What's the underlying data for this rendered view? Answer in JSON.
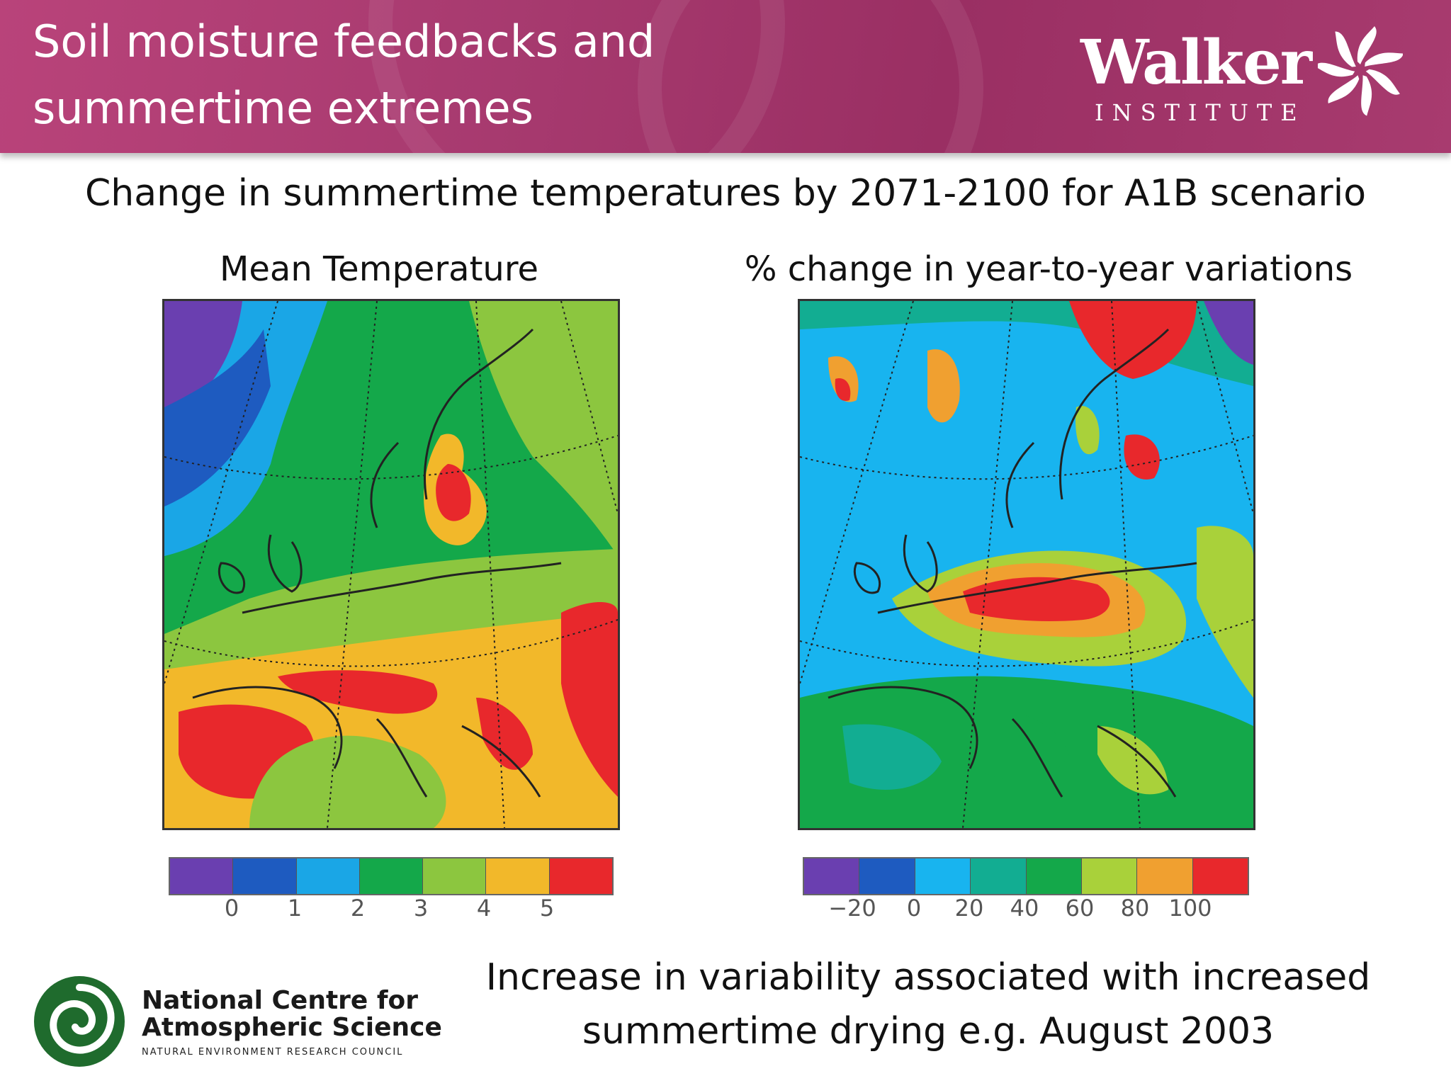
{
  "header": {
    "title_line1": "Soil moisture feedbacks and",
    "title_line2": "summertime extremes",
    "logo_name": "Walker",
    "logo_sub": "INSTITUTE",
    "colors": {
      "banner": "#a63a6e",
      "text": "#ffffff"
    }
  },
  "subtitle": "Change in summertime temperatures by 2071-2100 for A1B scenario",
  "maps": [
    {
      "title": "Mean Temperature",
      "colorbar": {
        "colors": [
          "#6a3fb0",
          "#1e5bc0",
          "#1aa6e6",
          "#14a84a",
          "#8cc63f",
          "#f2b82a",
          "#e8282c"
        ],
        "ticks": [
          "0",
          "1",
          "2",
          "3",
          "4",
          "5"
        ]
      }
    },
    {
      "title": "% change in year-to-year variations",
      "colorbar": {
        "colors": [
          "#6a3fb0",
          "#1e5bc0",
          "#18b4ef",
          "#12ad92",
          "#14a84a",
          "#a9d13a",
          "#f0a030",
          "#e8282c"
        ],
        "ticks": [
          "−20",
          "0",
          "20",
          "40",
          "60",
          "80",
          "100"
        ]
      }
    }
  ],
  "footer": {
    "ncas_line1": "National Centre for",
    "ncas_line2": "Atmospheric Science",
    "ncas_line3": "NATURAL ENVIRONMENT RESEARCH COUNCIL",
    "note_line1": "Increase in variability associated with increased",
    "note_line2": "summertime drying e.g. August 2003"
  },
  "icons": [
    "walker-pinwheel-icon",
    "ncas-swirl-icon"
  ]
}
